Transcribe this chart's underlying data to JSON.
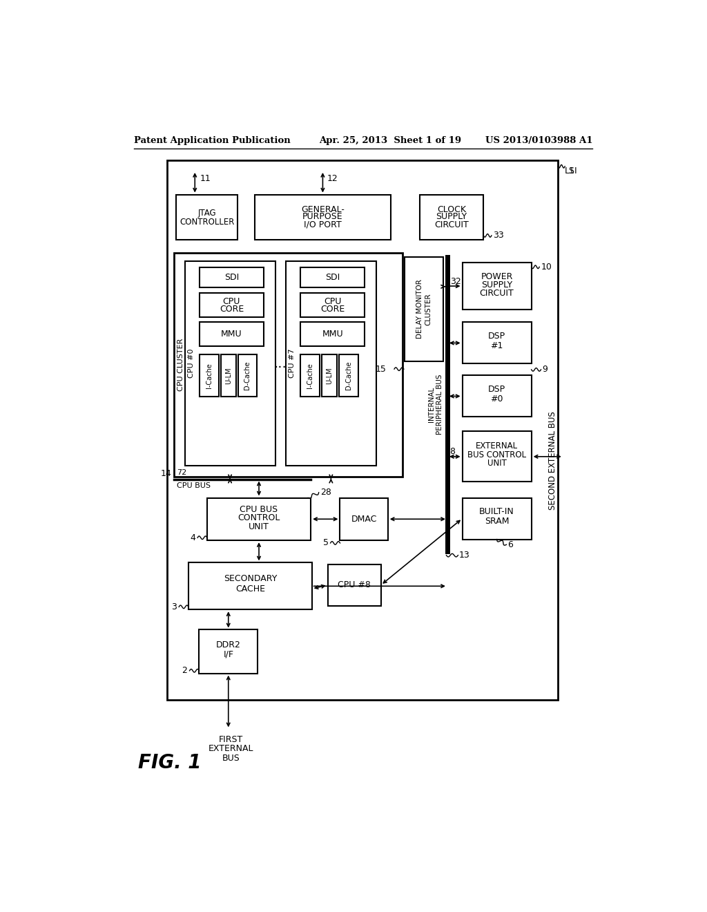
{
  "bg_color": "#ffffff",
  "header_left": "Patent Application Publication",
  "header_mid": "Apr. 25, 2013  Sheet 1 of 19",
  "header_right": "US 2013/0103988 A1",
  "fig_label": "FIG. 1"
}
